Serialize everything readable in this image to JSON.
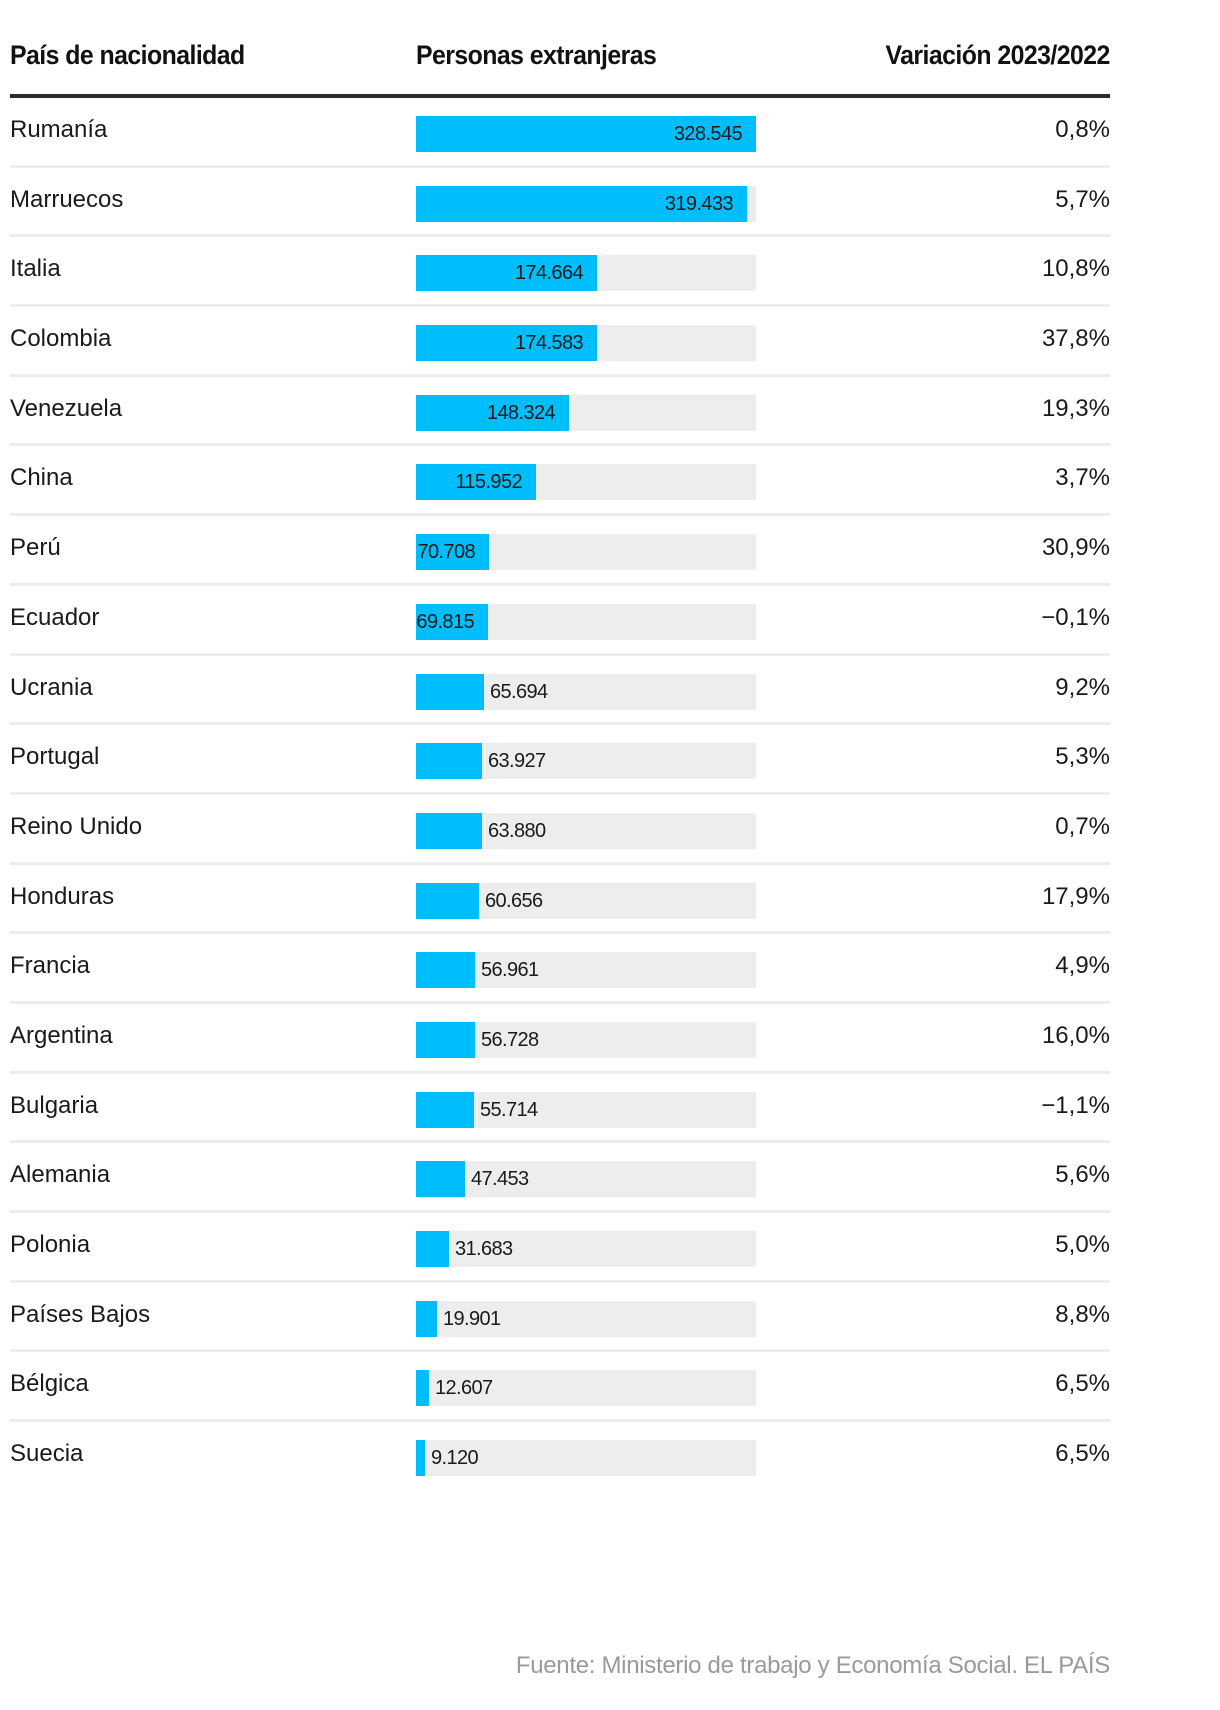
{
  "header": {
    "col_country": "País de nacionalidad",
    "col_people": "Personas extranjeras",
    "col_variation": "Variación 2023/2022"
  },
  "source": "Fuente: Ministerio de trabajo y Economía Social. EL PAÍS",
  "colors": {
    "bar": "#00befc",
    "track": "#ededed",
    "rule": "#2b2b2b",
    "source": "#9a9a9a"
  },
  "chart_data": {
    "type": "table",
    "title": "",
    "columns": [
      "País de nacionalidad",
      "Personas extranjeras",
      "Variación 2023/2022"
    ],
    "xlim": [
      0,
      328545
    ],
    "rows": [
      {
        "country": "Rumanía",
        "value": 328545,
        "value_label": "328.545",
        "variation": "0,8%"
      },
      {
        "country": "Marruecos",
        "value": 319433,
        "value_label": "319.433",
        "variation": "5,7%"
      },
      {
        "country": "Italia",
        "value": 174664,
        "value_label": "174.664",
        "variation": "10,8%"
      },
      {
        "country": "Colombia",
        "value": 174583,
        "value_label": "174.583",
        "variation": "37,8%"
      },
      {
        "country": "Venezuela",
        "value": 148324,
        "value_label": "148.324",
        "variation": "19,3%"
      },
      {
        "country": "China",
        "value": 115952,
        "value_label": "115.952",
        "variation": "3,7%"
      },
      {
        "country": "Perú",
        "value": 70708,
        "value_label": "70.708",
        "variation": "30,9%"
      },
      {
        "country": "Ecuador",
        "value": 69815,
        "value_label": "69.815",
        "variation": "−0,1%"
      },
      {
        "country": "Ucrania",
        "value": 65694,
        "value_label": "65.694",
        "variation": "9,2%"
      },
      {
        "country": "Portugal",
        "value": 63927,
        "value_label": "63.927",
        "variation": "5,3%"
      },
      {
        "country": "Reino Unido",
        "value": 63880,
        "value_label": "63.880",
        "variation": "0,7%"
      },
      {
        "country": "Honduras",
        "value": 60656,
        "value_label": "60.656",
        "variation": "17,9%"
      },
      {
        "country": "Francia",
        "value": 56961,
        "value_label": "56.961",
        "variation": "4,9%"
      },
      {
        "country": "Argentina",
        "value": 56728,
        "value_label": "56.728",
        "variation": "16,0%"
      },
      {
        "country": "Bulgaria",
        "value": 55714,
        "value_label": "55.714",
        "variation": "−1,1%"
      },
      {
        "country": "Alemania",
        "value": 47453,
        "value_label": "47.453",
        "variation": "5,6%"
      },
      {
        "country": "Polonia",
        "value": 31683,
        "value_label": "31.683",
        "variation": "5,0%"
      },
      {
        "country": "Países Bajos",
        "value": 19901,
        "value_label": "19.901",
        "variation": "8,8%"
      },
      {
        "country": "Bélgica",
        "value": 12607,
        "value_label": "12.607",
        "variation": "6,5%"
      },
      {
        "country": "Suecia",
        "value": 9120,
        "value_label": "9.120",
        "variation": "6,5%"
      }
    ]
  }
}
